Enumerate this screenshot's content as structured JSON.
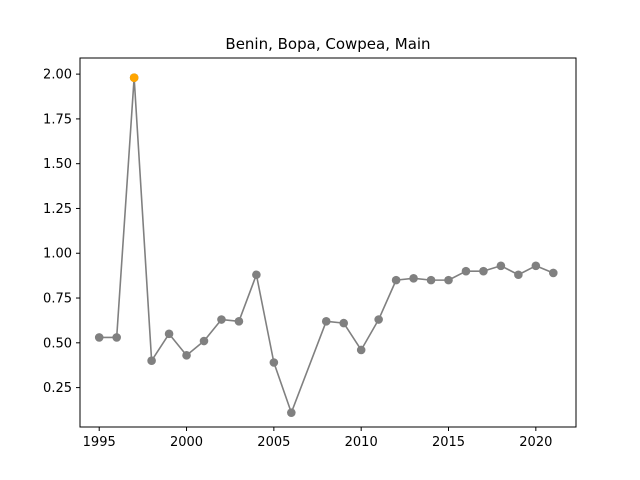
{
  "chart_data": {
    "type": "line",
    "title": "Benin, Bopa, Cowpea, Main",
    "xlabel": "",
    "ylabel": "",
    "xlim": [
      1993.9,
      2022.3
    ],
    "ylim": [
      0.03,
      2.09
    ],
    "xticks": [
      1995,
      2000,
      2005,
      2010,
      2015,
      2020
    ],
    "yticks": [
      0.25,
      0.5,
      0.75,
      1.0,
      1.25,
      1.5,
      1.75,
      2.0
    ],
    "ytick_labels": [
      "0.25",
      "0.50",
      "0.75",
      "1.00",
      "1.25",
      "1.50",
      "1.75",
      "2.00"
    ],
    "grid": false,
    "series": [
      {
        "color": "#808080",
        "segments": [
          [
            {
              "x": 1995,
              "y": 0.53
            },
            {
              "x": 1996,
              "y": 0.53
            },
            {
              "x": 1997,
              "y": 1.98
            },
            {
              "x": 1998,
              "y": 0.4
            },
            {
              "x": 1999,
              "y": 0.55
            },
            {
              "x": 2000,
              "y": 0.43
            },
            {
              "x": 2001,
              "y": 0.51
            },
            {
              "x": 2002,
              "y": 0.63
            },
            {
              "x": 2003,
              "y": 0.62
            },
            {
              "x": 2004,
              "y": 0.88
            },
            {
              "x": 2005,
              "y": 0.39
            },
            {
              "x": 2006,
              "y": 0.11
            },
            {
              "x": 2008,
              "y": 0.62
            },
            {
              "x": 2009,
              "y": 0.61
            },
            {
              "x": 2010,
              "y": 0.46
            },
            {
              "x": 2011,
              "y": 0.63
            },
            {
              "x": 2012,
              "y": 0.85
            },
            {
              "x": 2013,
              "y": 0.86
            },
            {
              "x": 2014,
              "y": 0.85
            },
            {
              "x": 2015,
              "y": 0.85
            },
            {
              "x": 2016,
              "y": 0.9
            },
            {
              "x": 2017,
              "y": 0.9
            },
            {
              "x": 2018,
              "y": 0.93
            },
            {
              "x": 2019,
              "y": 0.88
            },
            {
              "x": 2020,
              "y": 0.93
            },
            {
              "x": 2021,
              "y": 0.89
            }
          ]
        ]
      }
    ],
    "highlight": {
      "x": 1997,
      "y": 1.98,
      "color": "#ffa500"
    }
  }
}
